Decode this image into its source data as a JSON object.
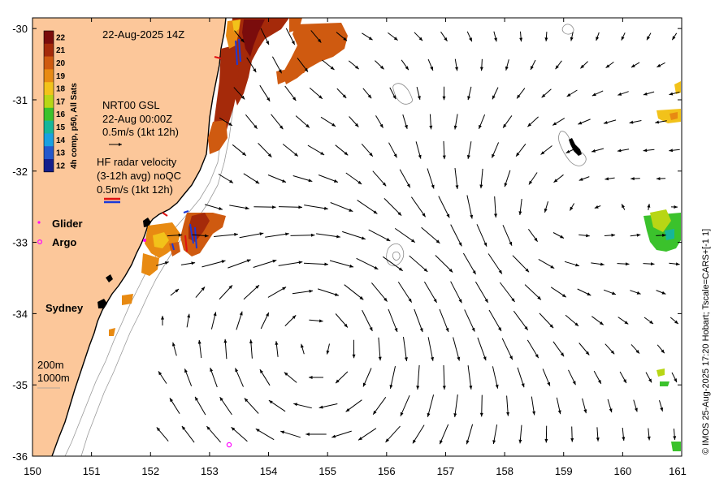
{
  "header": {
    "datetime": "22-Aug-2025 14Z"
  },
  "colorbar": {
    "title": "4h comp, p50, All Sats",
    "labels": [
      "22",
      "21",
      "20",
      "19",
      "18",
      "17",
      "16",
      "15",
      "14",
      "13",
      "12"
    ],
    "colors": [
      "#7a0c0c",
      "#a52a0a",
      "#cf5a10",
      "#e88a12",
      "#f2c21a",
      "#b8d615",
      "#3bc22c",
      "#16b69a",
      "#1aa0e0",
      "#2458cc",
      "#141e8c"
    ]
  },
  "legend": {
    "model_line1": "NRT00 GSL",
    "model_line2": "22-Aug 00:00Z",
    "model_line3": "0.5m/s (1kt 12h)",
    "radar_line1": "HF radar velocity",
    "radar_line2": "(3-12h avg) noQC",
    "radar_line3": "0.5m/s (1kt 12h)",
    "glider": "Glider",
    "argo": "Argo",
    "city": "Sydney",
    "depth_200": "200m",
    "depth_1000": "1000m"
  },
  "axes": {
    "x_ticks": [
      "150",
      "151",
      "152",
      "153",
      "154",
      "155",
      "156",
      "157",
      "158",
      "159",
      "160",
      "161"
    ],
    "y_ticks": [
      "-30",
      "-31",
      "-32",
      "-33",
      "-34",
      "-35",
      "-36"
    ],
    "xlim": [
      150,
      161
    ],
    "ylim": [
      -36,
      -29.85
    ]
  },
  "credit": "© IMOS 25-Aug-2025 17:20 Hobart; Tscale=CARS+[-1 1]",
  "colors": {
    "land": "#fcc79a",
    "glider": "#ff00ff",
    "argo": "#ff00ff",
    "arrow": "#000000"
  }
}
